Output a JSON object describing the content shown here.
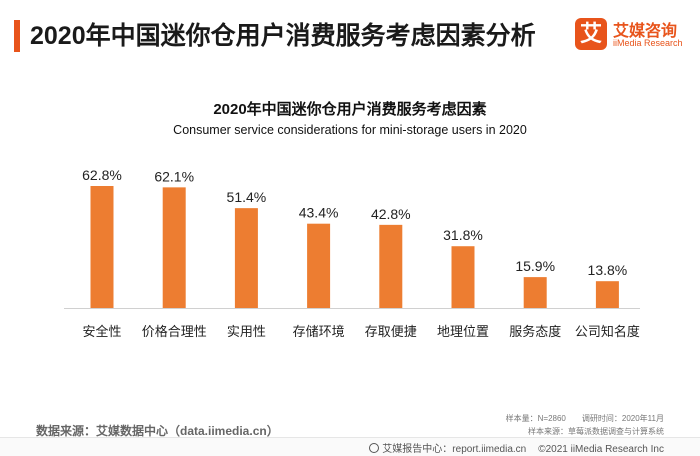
{
  "header": {
    "title": "2020年中国迷你仓用户消费服务考虑因素分析",
    "logo_cn": "艾媒咨询",
    "logo_en": "iiMedia Research",
    "logo_mark": "艾"
  },
  "chart_data": {
    "type": "bar",
    "title": "2020年中国迷你仓用户消费服务考虑因素",
    "subtitle": "Consumer service considerations for mini-storage users in 2020",
    "categories": [
      "安全性",
      "价格合理性",
      "实用性",
      "存储环境",
      "存取便捷",
      "地理位置",
      "服务态度",
      "公司知名度"
    ],
    "values": [
      62.8,
      62.1,
      51.4,
      43.4,
      42.8,
      31.8,
      15.9,
      13.8
    ],
    "value_labels": [
      "62.8%",
      "62.1%",
      "51.4%",
      "43.4%",
      "42.8%",
      "31.8%",
      "15.9%",
      "13.8%"
    ],
    "ylim": [
      0,
      62.8
    ],
    "bar_color": "#ed7d31",
    "grid": false,
    "legend": "none"
  },
  "footer": {
    "source": "数据来源：艾媒数据中心（data.iimedia.cn）",
    "sample_line": "样本量：N=2860　　调研时间：2020年11月",
    "source_line": "样本来源：草莓派数据调查与计算系统",
    "bottom": "艾媒报告中心：report.iimedia.cn",
    "copyright": "©2021  iiMedia Research  Inc"
  },
  "colors": {
    "accent": "#e8541b",
    "bar": "#ed7d31"
  }
}
